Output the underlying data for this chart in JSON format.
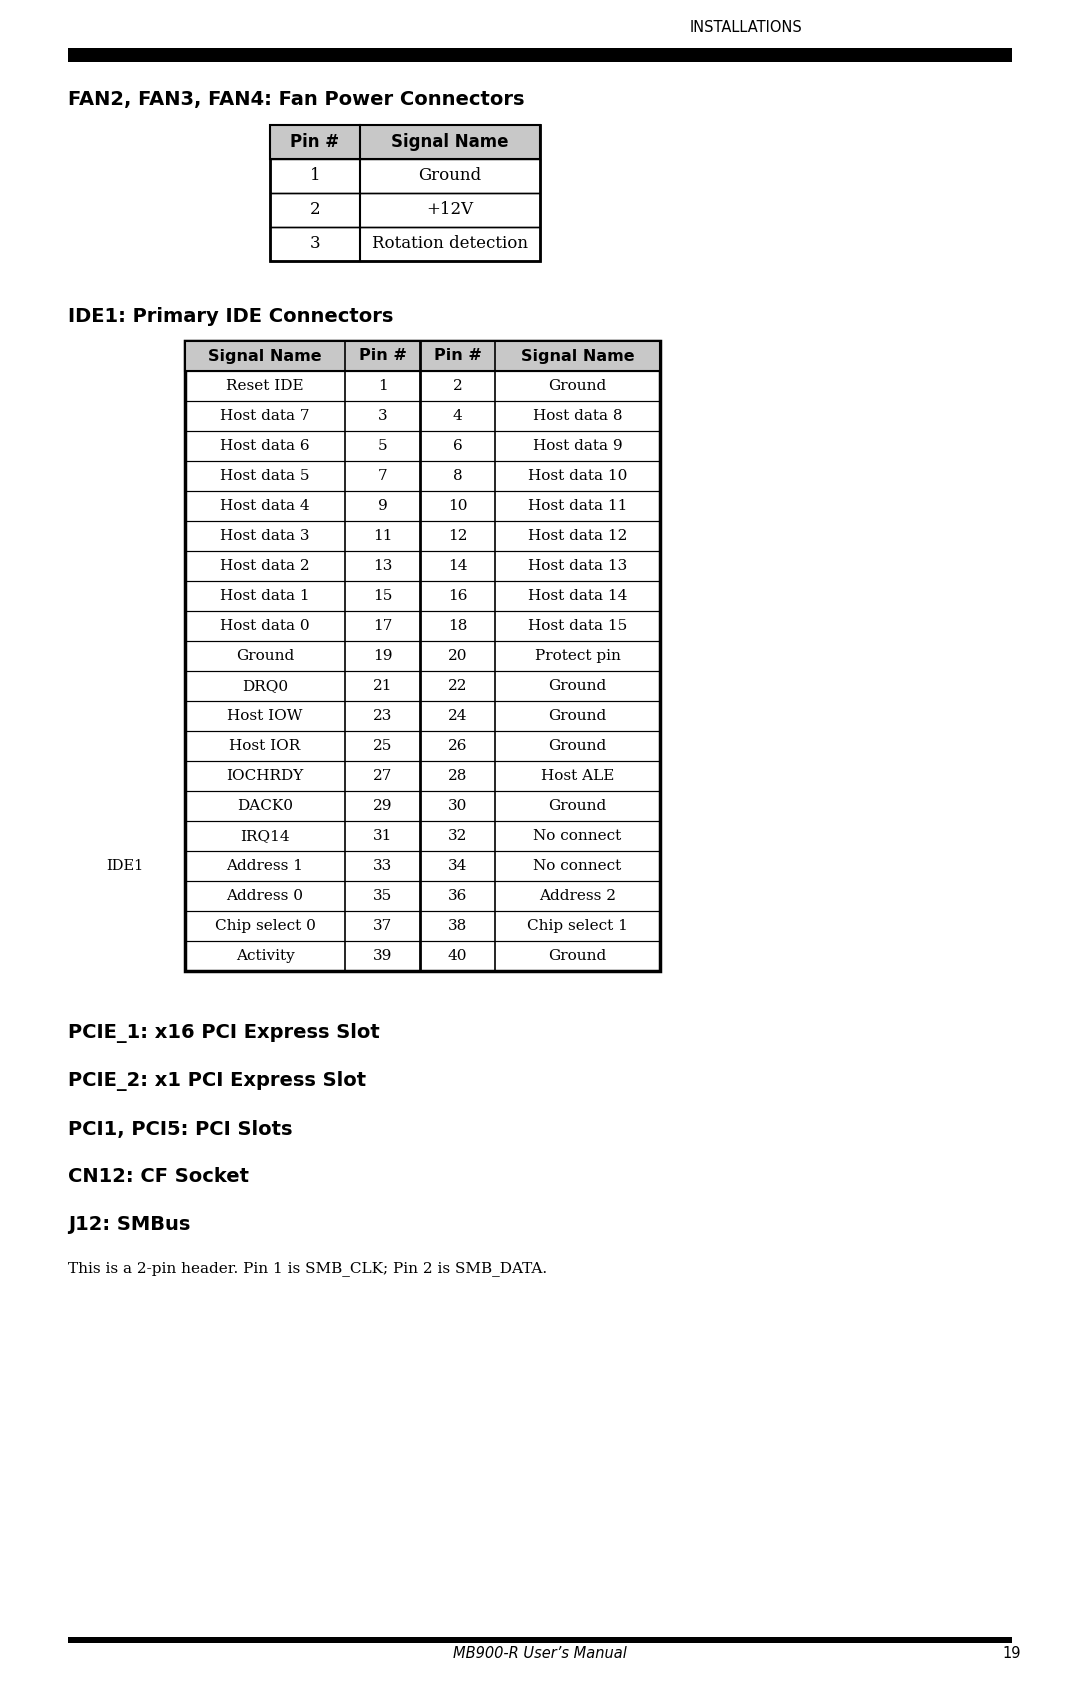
{
  "page_header": "INSTALLATIONS",
  "section1_title": "FAN2, FAN3, FAN4: Fan Power Connectors",
  "fan_table_headers": [
    "Pin #",
    "Signal Name"
  ],
  "fan_table_rows": [
    [
      "1",
      "Ground"
    ],
    [
      "2",
      "+12V"
    ],
    [
      "3",
      "Rotation detection"
    ]
  ],
  "section2_title": "IDE1: Primary IDE Connectors",
  "ide_table_headers": [
    "Signal Name",
    "Pin #",
    "Pin #",
    "Signal Name"
  ],
  "ide_table_rows": [
    [
      "Reset IDE",
      "1",
      "2",
      "Ground"
    ],
    [
      "Host data 7",
      "3",
      "4",
      "Host data 8"
    ],
    [
      "Host data 6",
      "5",
      "6",
      "Host data 9"
    ],
    [
      "Host data 5",
      "7",
      "8",
      "Host data 10"
    ],
    [
      "Host data 4",
      "9",
      "10",
      "Host data 11"
    ],
    [
      "Host data 3",
      "11",
      "12",
      "Host data 12"
    ],
    [
      "Host data 2",
      "13",
      "14",
      "Host data 13"
    ],
    [
      "Host data 1",
      "15",
      "16",
      "Host data 14"
    ],
    [
      "Host data 0",
      "17",
      "18",
      "Host data 15"
    ],
    [
      "Ground",
      "19",
      "20",
      "Protect pin"
    ],
    [
      "DRQ0",
      "21",
      "22",
      "Ground"
    ],
    [
      "Host IOW",
      "23",
      "24",
      "Ground"
    ],
    [
      "Host IOR",
      "25",
      "26",
      "Ground"
    ],
    [
      "IOCHRDY",
      "27",
      "28",
      "Host ALE"
    ],
    [
      "DACK0",
      "29",
      "30",
      "Ground"
    ],
    [
      "IRQ14",
      "31",
      "32",
      "No connect"
    ],
    [
      "Address 1",
      "33",
      "34",
      "No connect"
    ],
    [
      "Address 0",
      "35",
      "36",
      "Address 2"
    ],
    [
      "Chip select 0",
      "37",
      "38",
      "Chip select 1"
    ],
    [
      "Activity",
      "39",
      "40",
      "Ground"
    ]
  ],
  "ide1_label_row": 16,
  "section3_title": "PCIE_1: x16 PCI Express Slot",
  "section4_title": "PCIE_2: x1 PCI Express Slot",
  "section5_title": "PCI1, PCI5: PCI Slots",
  "section6_title": "CN12: CF Socket",
  "section7_title": "J12: SMBus",
  "smbus_text": "This is a 2-pin header. Pin 1 is SMB_CLK; Pin 2 is SMB_DATA.",
  "footer_text": "MB900-R User’s Manual",
  "footer_page": "19",
  "bg_color": "#ffffff",
  "table_header_bg": "#c8c8c8",
  "border_color": "#000000"
}
